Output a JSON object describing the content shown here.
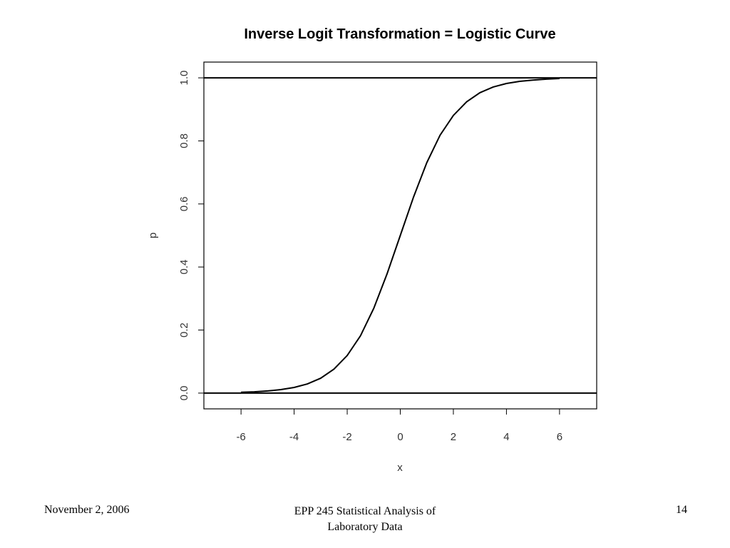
{
  "footer": {
    "date": "November 2, 2006",
    "course_line1": "EPP 245 Statistical Analysis of",
    "course_line2": "Laboratory Data",
    "page": "14"
  },
  "chart_data": {
    "type": "line",
    "title": "Inverse Logit Transformation = Logistic Curve",
    "xlabel": "x",
    "ylabel": "p",
    "xlim": [
      -7.4,
      7.4
    ],
    "ylim": [
      -0.05,
      1.05
    ],
    "xticks": [
      -6,
      -4,
      -2,
      0,
      2,
      4,
      6
    ],
    "yticks": [
      0.0,
      0.2,
      0.4,
      0.6,
      0.8,
      1.0
    ],
    "xtick_labels": [
      "-6",
      "-4",
      "-2",
      "0",
      "2",
      "4",
      "6"
    ],
    "ytick_labels": [
      "0.0",
      "0.2",
      "0.4",
      "0.6",
      "0.8",
      "1.0"
    ],
    "grid": false,
    "hlines": [
      0,
      1
    ],
    "series": [
      {
        "x": [
          -6,
          -5.5,
          -5,
          -4.5,
          -4,
          -3.5,
          -3,
          -2.5,
          -2,
          -1.5,
          -1,
          -0.5,
          0,
          0.5,
          1,
          1.5,
          2,
          2.5,
          3,
          3.5,
          4,
          4.5,
          5,
          5.5,
          6
        ],
        "y": [
          0.0025,
          0.0041,
          0.0067,
          0.011,
          0.018,
          0.029,
          0.047,
          0.076,
          0.119,
          0.182,
          0.269,
          0.378,
          0.5,
          0.622,
          0.731,
          0.818,
          0.881,
          0.924,
          0.953,
          0.971,
          0.982,
          0.989,
          0.993,
          0.996,
          0.998
        ]
      }
    ]
  }
}
